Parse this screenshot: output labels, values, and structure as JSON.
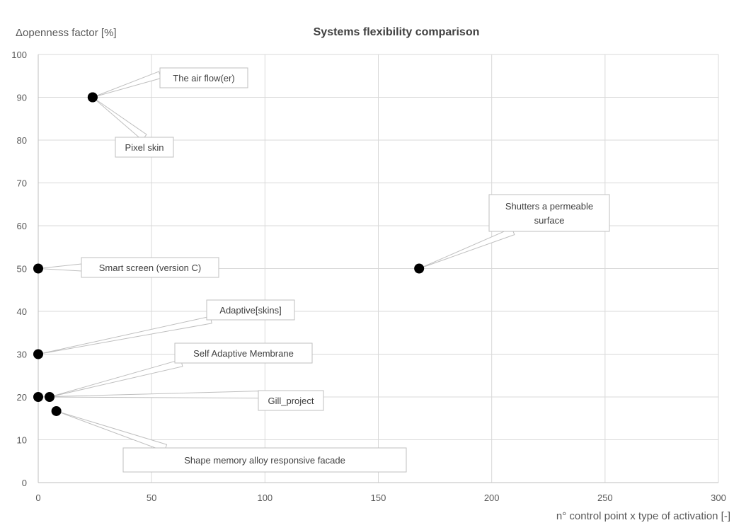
{
  "chart_data": {
    "type": "scatter",
    "title": "Systems flexibility comparison",
    "xlabel": "n° control point x type of activation [-]",
    "ylabel": "Δopenness factor [%]",
    "xlim": [
      0,
      300
    ],
    "ylim": [
      0,
      100
    ],
    "xticks": [
      0,
      50,
      100,
      150,
      200,
      250,
      300
    ],
    "yticks": [
      0,
      10,
      20,
      30,
      40,
      50,
      60,
      70,
      80,
      90,
      100
    ],
    "grid": true,
    "points": [
      {
        "id": "air-flower",
        "x": 24,
        "y": 90,
        "label": [
          "The air flow(er)"
        ]
      },
      {
        "id": "pixel-skin",
        "x": 24,
        "y": 90,
        "label": [
          "Pixel skin"
        ]
      },
      {
        "id": "shutters",
        "x": 168,
        "y": 50,
        "label": [
          "Shutters a permeable",
          "surface"
        ]
      },
      {
        "id": "smart-screen",
        "x": 0,
        "y": 50,
        "label": [
          "Smart screen (version C)"
        ]
      },
      {
        "id": "adaptive-skins",
        "x": 0,
        "y": 30,
        "label": [
          "Adaptive[skins]"
        ]
      },
      {
        "id": "self-adaptive",
        "x": 5,
        "y": 20,
        "label": [
          "Self Adaptive Membrane"
        ]
      },
      {
        "id": "gill-project",
        "x": 0,
        "y": 20,
        "label": [
          "Gill_project"
        ]
      },
      {
        "id": "sma-facade",
        "x": 8,
        "y": 16.7,
        "label": [
          "Shape memory alloy responsive facade"
        ]
      }
    ]
  }
}
